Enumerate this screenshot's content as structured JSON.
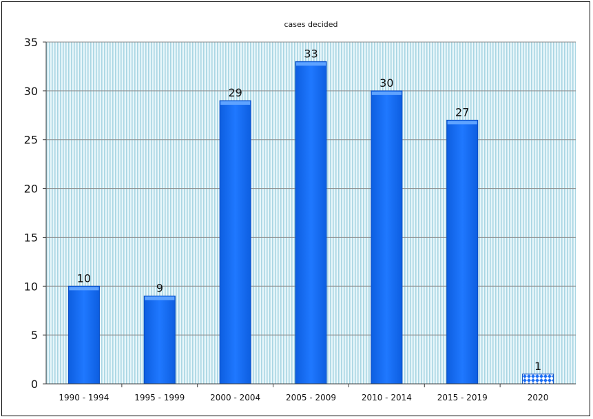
{
  "chart_data": {
    "type": "bar",
    "title": "cases  decided",
    "xlabel": "",
    "ylabel": "",
    "categories": [
      "1990 - 1994",
      "1995 - 1999",
      "2000 - 2004",
      "2005 - 2009",
      "2010 - 2014",
      "2015 - 2019",
      "2020"
    ],
    "values": [
      10,
      9,
      29,
      33,
      30,
      27,
      1
    ],
    "ylim": [
      0,
      35
    ],
    "yticks": [
      0,
      5,
      10,
      15,
      20,
      25,
      30,
      35
    ],
    "grid": true,
    "legend": "none",
    "colors": {
      "bar": "#1a6ef5",
      "bar_top": "#5fa3ff",
      "bar_edge": "#0a4fc4",
      "plot_background": "#e8f6fa",
      "plot_stripes": "#a9d6e3",
      "gridline": "#8a8a8a",
      "axis": "#404040",
      "highlight_bar_fill": "#ffffff",
      "highlight_bar_pattern": "#1a6ef5"
    },
    "patterned_categories": [
      "2020"
    ]
  }
}
